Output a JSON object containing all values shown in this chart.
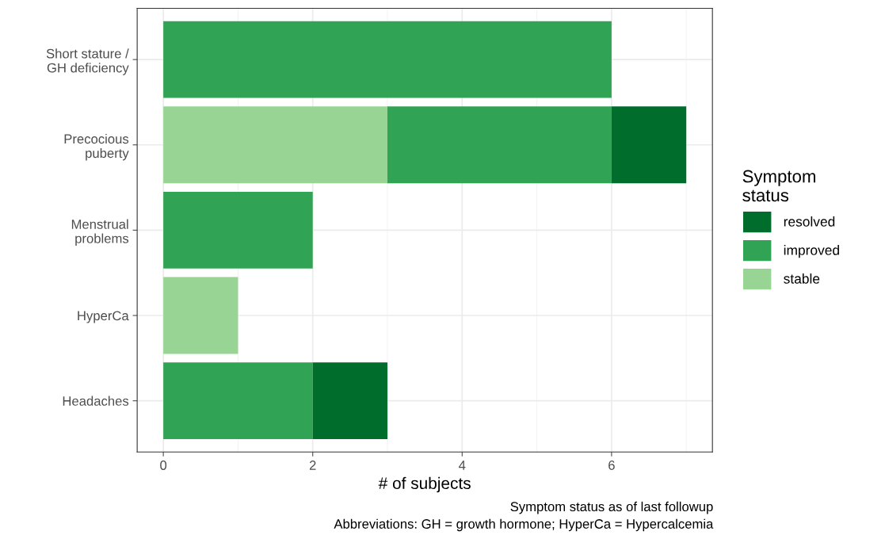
{
  "chart_data": {
    "type": "bar",
    "orientation": "horizontal",
    "stacked": true,
    "categories": [
      "Short stature /\nGH deficiency",
      "Precocious\npuberty",
      "Menstrual\nproblems",
      "HyperCa",
      "Headaches"
    ],
    "series": [
      {
        "name": "stable",
        "color": "#98d594",
        "values": [
          0,
          3,
          0,
          1,
          0
        ]
      },
      {
        "name": "improved",
        "color": "#31a354",
        "values": [
          6,
          3,
          2,
          0,
          2
        ]
      },
      {
        "name": "resolved",
        "color": "#006d2c",
        "values": [
          0,
          1,
          0,
          0,
          1
        ]
      }
    ],
    "xlabel": "# of subjects",
    "legend_title": "Symptom\nstatus",
    "legend": "right",
    "xlim": [
      -0.35,
      7.35
    ],
    "xticks": [
      0,
      2,
      4,
      6
    ],
    "grid": true,
    "annotations": [
      "Symptom status as of last followup",
      "Abbreviations: GH = growth hormone; HyperCa = Hypercalcemia"
    ]
  }
}
